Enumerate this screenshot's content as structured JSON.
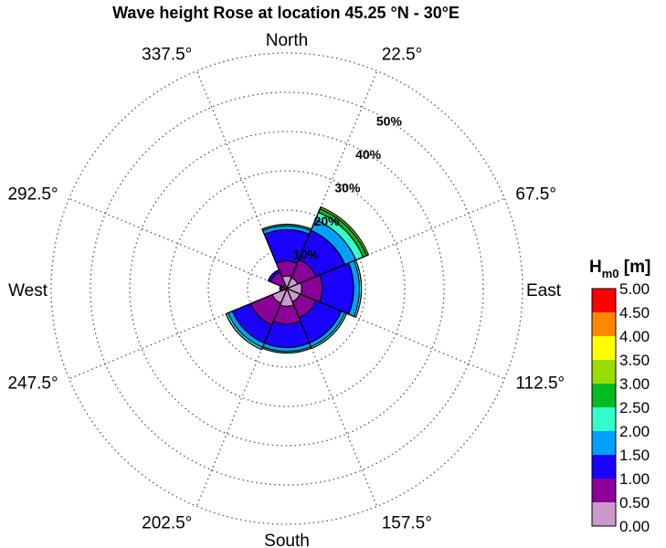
{
  "chart_data": {
    "type": "wind-rose",
    "title": "Wave height Rose at location 45.25 °N - 30°E",
    "cardinal_labels": {
      "north": "North",
      "east": "East",
      "south": "South",
      "west": "West"
    },
    "direction_tick_labels": [
      "22.5°",
      "67.5°",
      "112.5°",
      "157.5°",
      "202.5°",
      "247.5°",
      "292.5°",
      "337.5°"
    ],
    "direction_tick_angles": [
      22.5,
      67.5,
      112.5,
      157.5,
      202.5,
      247.5,
      292.5,
      337.5
    ],
    "ring_values": [
      10,
      20,
      30,
      40,
      50
    ],
    "ring_labels": [
      "10%",
      "20%",
      "30%",
      "40%",
      "50%"
    ],
    "r_max": 60,
    "grid": true,
    "sectors": [
      {
        "direction": 0,
        "cumulative": [
          3.2,
          7.0,
          15.0,
          16.0,
          16.4
        ]
      },
      {
        "direction": 45,
        "cumulative": [
          3.0,
          8.0,
          16.0,
          19.0,
          21.0,
          22.0,
          22.5
        ]
      },
      {
        "direction": 90,
        "cumulative": [
          3.8,
          9.0,
          17.0,
          18.5,
          19.0
        ]
      },
      {
        "direction": 135,
        "cumulative": [
          3.6,
          8.0,
          15.0,
          16.0,
          16.5
        ]
      },
      {
        "direction": 180,
        "cumulative": [
          4.5,
          9.0,
          15.0,
          16.0,
          16.4
        ]
      },
      {
        "direction": 225,
        "cumulative": [
          4.0,
          10.0,
          15.0,
          16.2,
          16.8
        ]
      },
      {
        "direction": 270,
        "cumulative": [
          0.5,
          1.5,
          1.8
        ]
      },
      {
        "direction": 315,
        "cumulative": [
          1.0,
          4.5,
          5.2
        ]
      }
    ],
    "colorbar": {
      "title": "H",
      "title_sub": "m0",
      "title_unit": " [m]",
      "labels": [
        "5.00",
        "4.50",
        "4.00",
        "3.50",
        "3.00",
        "2.50",
        "2.00",
        "1.50",
        "1.00",
        "0.50",
        "0.00"
      ],
      "bin_colors": [
        "#cc99cc",
        "#8b0099",
        "#1a00ff",
        "#00a0ff",
        "#33ffcc",
        "#00bb22",
        "#99dd00",
        "#ffff00",
        "#ff8800",
        "#ff0000"
      ]
    }
  }
}
